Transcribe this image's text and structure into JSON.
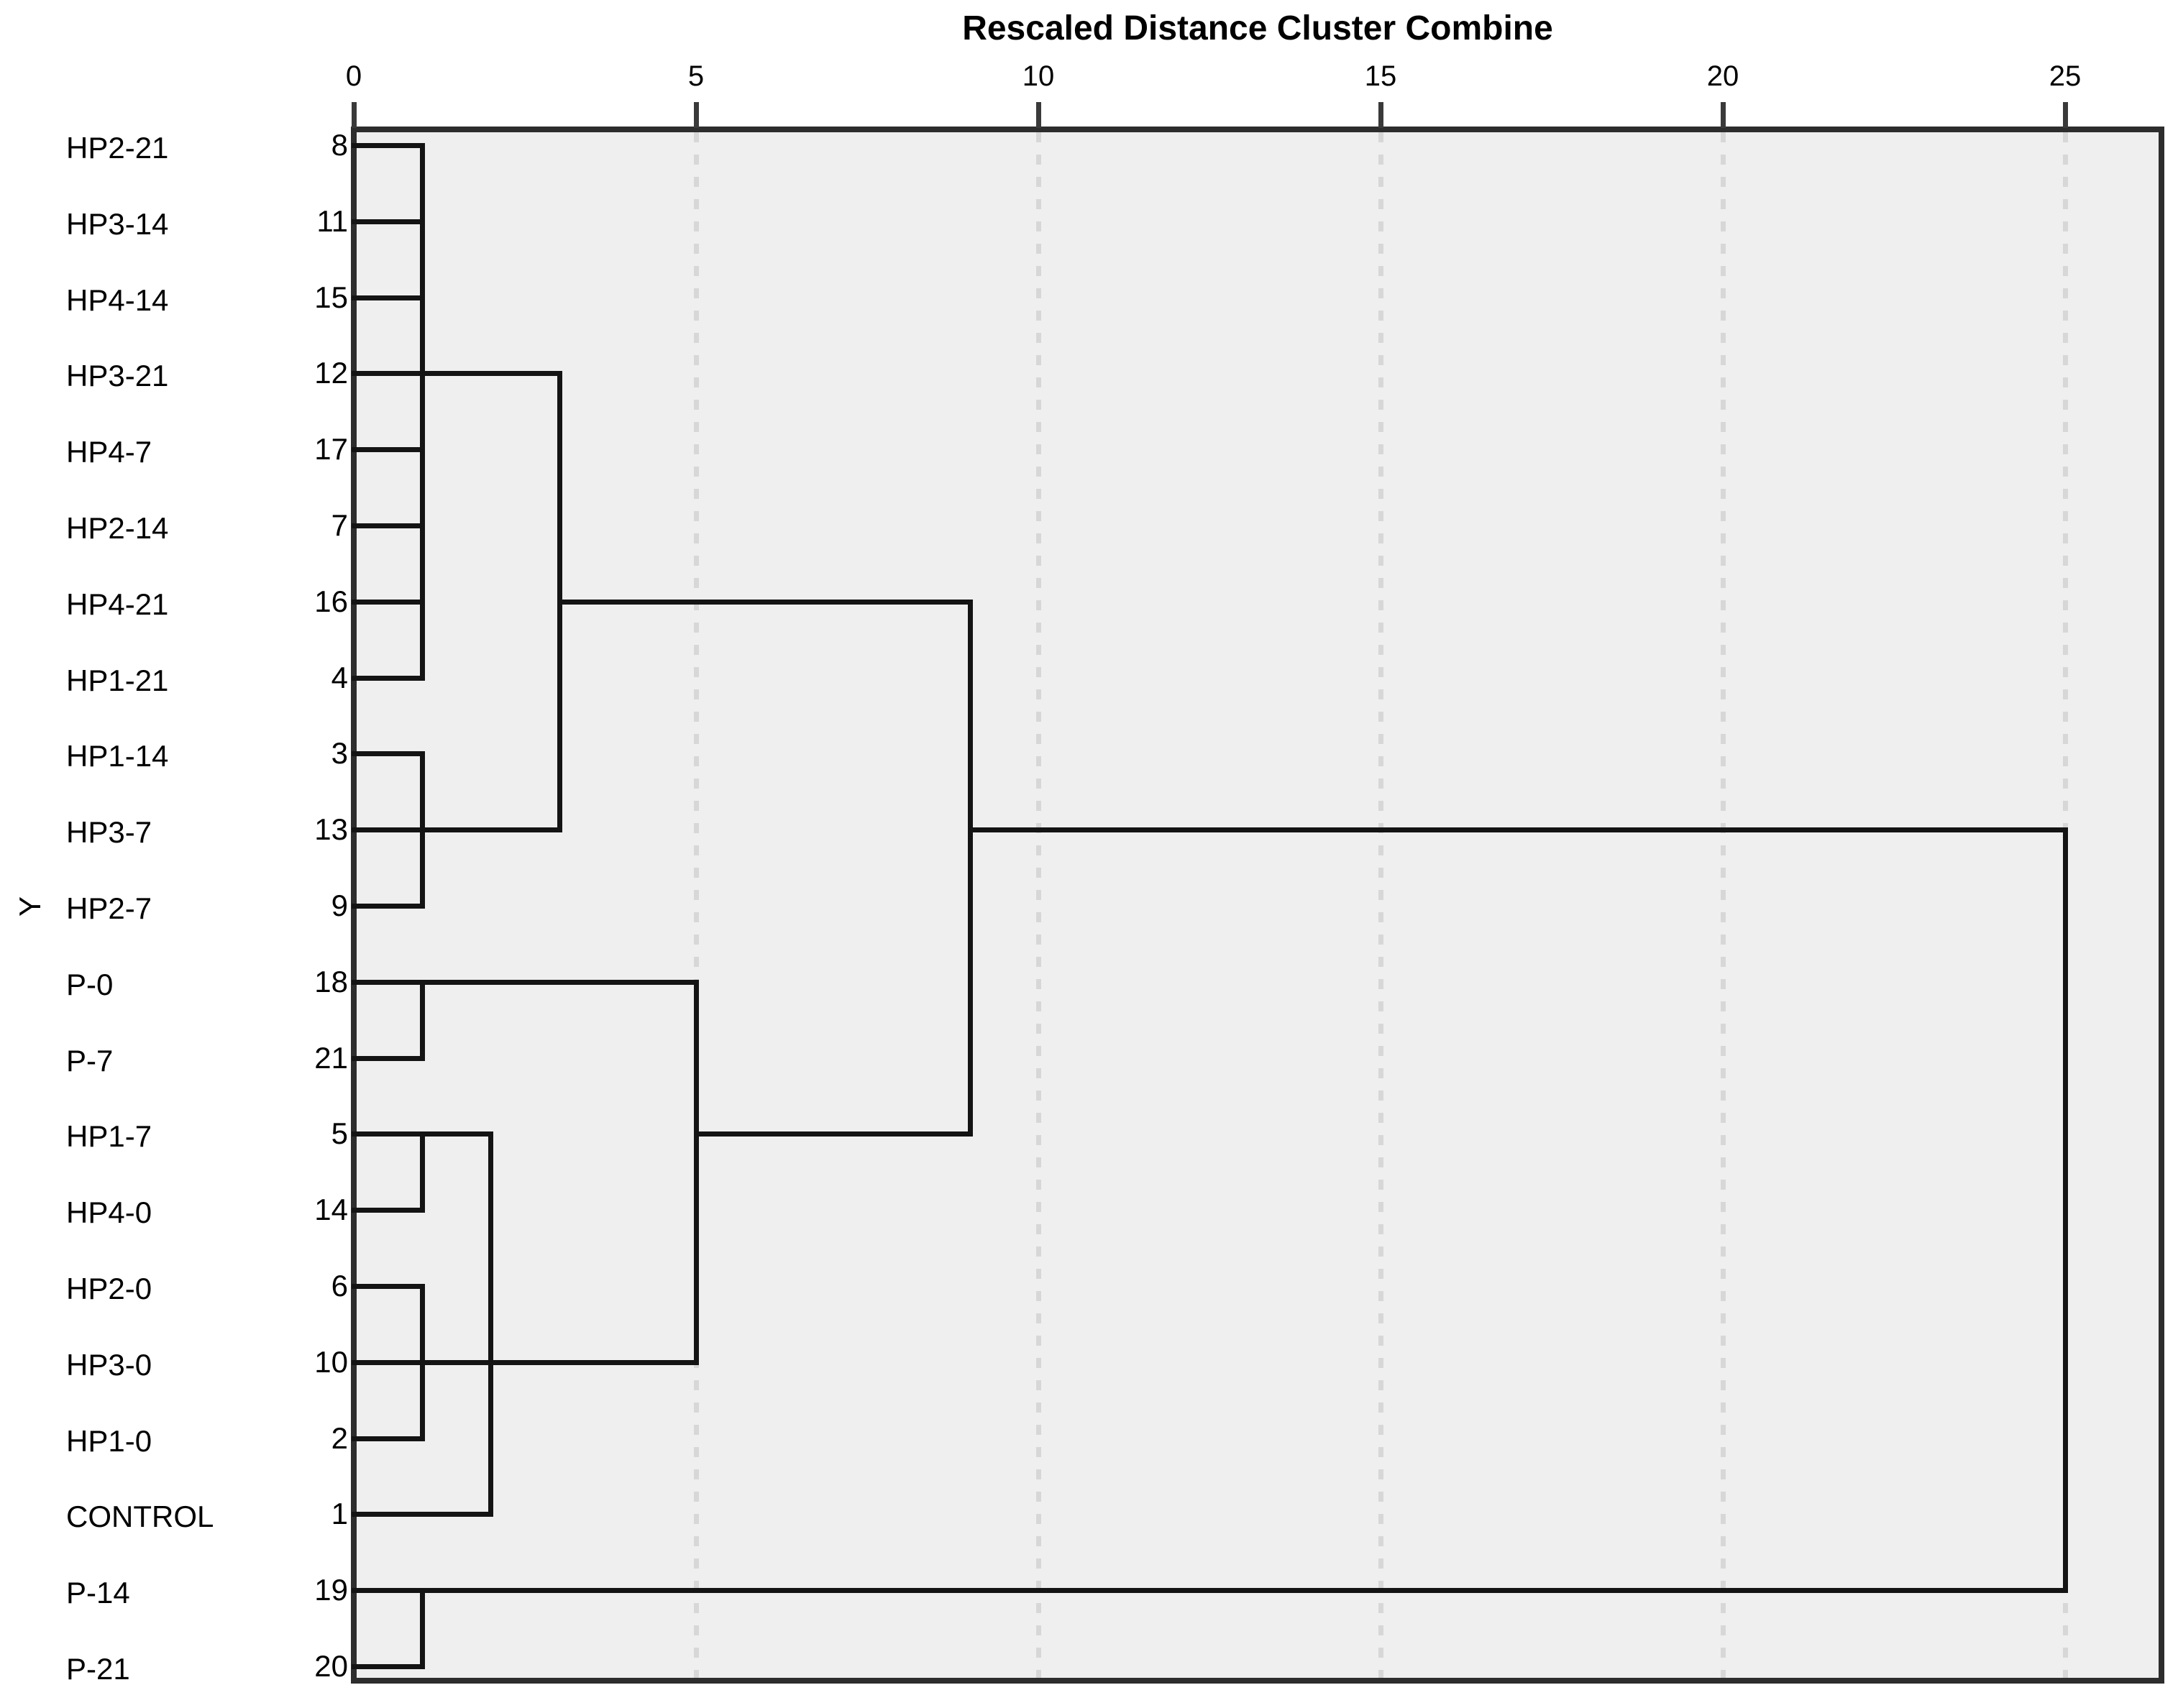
{
  "title": "Rescaled Distance Cluster Combine",
  "y_axis_label": "Y",
  "chart_data": {
    "type": "dendrogram",
    "title": "Rescaled Distance Cluster Combine",
    "xlabel": "Rescaled Distance Cluster Combine",
    "ylabel": "Y",
    "orientation": "horizontal, leaves on left",
    "xlim": [
      0,
      25
    ],
    "x_ticks": [
      0,
      5,
      10,
      15,
      20,
      25
    ],
    "grid": "dashed vertical gridlines at 5, 10, 15, 20, 25",
    "leaves": [
      {
        "label": "HP2-21",
        "case": "8"
      },
      {
        "label": "HP3-14",
        "case": "11"
      },
      {
        "label": "HP4-14",
        "case": "15"
      },
      {
        "label": "HP3-21",
        "case": "12"
      },
      {
        "label": "HP4-7",
        "case": "17"
      },
      {
        "label": "HP2-14",
        "case": "7"
      },
      {
        "label": "HP4-21",
        "case": "16"
      },
      {
        "label": "HP1-21",
        "case": "4"
      },
      {
        "label": "HP1-14",
        "case": "3"
      },
      {
        "label": "HP3-7",
        "case": "13"
      },
      {
        "label": "HP2-7",
        "case": "9"
      },
      {
        "label": "P-0",
        "case": "18"
      },
      {
        "label": "P-7",
        "case": "21"
      },
      {
        "label": "HP1-7",
        "case": "5"
      },
      {
        "label": "HP4-0",
        "case": "14"
      },
      {
        "label": "HP2-0",
        "case": "6"
      },
      {
        "label": "HP3-0",
        "case": "10"
      },
      {
        "label": "HP1-0",
        "case": "2"
      },
      {
        "label": "CONTROL",
        "case": "1"
      },
      {
        "label": "P-14",
        "case": "19"
      },
      {
        "label": "P-21",
        "case": "20"
      }
    ],
    "joins": [
      {
        "members": "HP2-21,HP3-14,HP4-14,HP3-21,HP4-7,HP2-14,HP4-21,HP1-21",
        "distance": 1
      },
      {
        "members": "HP1-14,HP3-7,HP2-7",
        "distance": 1
      },
      {
        "members": "upper HP cluster + {HP1-14,HP3-7,HP2-7}",
        "distance": 3
      },
      {
        "members": "P-0,P-7",
        "distance": 1
      },
      {
        "members": "HP1-7,HP4-0",
        "distance": 1
      },
      {
        "members": "HP2-0,HP3-0,HP1-0",
        "distance": 1
      },
      {
        "members": "{HP1-7,HP4-0} + {HP2-0,HP3-0,HP1-0} + CONTROL",
        "distance": 2
      },
      {
        "members": "{P-0,P-7} + {HP1-7,HP4-0,HP2-0,HP3-0,HP1-0,CONTROL}",
        "distance": 5
      },
      {
        "members": "all-HP/21-day cluster + P-0/P-7/HP-0/CONTROL cluster",
        "distance": 9
      },
      {
        "members": "P-14,P-21",
        "distance": 1
      },
      {
        "members": "root: everything + {P-14,P-21}",
        "distance": 25
      }
    ],
    "segments": {
      "horizontal": [
        {
          "row": 1,
          "x1": 0,
          "x2": 1
        },
        {
          "row": 2,
          "x1": 0,
          "x2": 1
        },
        {
          "row": 3,
          "x1": 0,
          "x2": 1
        },
        {
          "row": 4,
          "x1": 0,
          "x2": 3
        },
        {
          "row": 5,
          "x1": 0,
          "x2": 1
        },
        {
          "row": 6,
          "x1": 0,
          "x2": 1
        },
        {
          "row": 7,
          "x1": 0,
          "x2": 1
        },
        {
          "row": 7,
          "x1": 3,
          "x2": 9
        },
        {
          "row": 8,
          "x1": 0,
          "x2": 1
        },
        {
          "row": 9,
          "x1": 0,
          "x2": 1
        },
        {
          "row": 10,
          "x1": 0,
          "x2": 3
        },
        {
          "row": 10,
          "x1": 9,
          "x2": 25
        },
        {
          "row": 11,
          "x1": 0,
          "x2": 1
        },
        {
          "row": 12,
          "x1": 0,
          "x2": 5
        },
        {
          "row": 13,
          "x1": 0,
          "x2": 1
        },
        {
          "row": 14,
          "x1": 0,
          "x2": 2
        },
        {
          "row": 14,
          "x1": 5,
          "x2": 9
        },
        {
          "row": 15,
          "x1": 0,
          "x2": 1
        },
        {
          "row": 16,
          "x1": 0,
          "x2": 1
        },
        {
          "row": 17,
          "x1": 0,
          "x2": 5
        },
        {
          "row": 18,
          "x1": 0,
          "x2": 1
        },
        {
          "row": 19,
          "x1": 0,
          "x2": 2
        },
        {
          "row": 20,
          "x1": 0,
          "x2": 25
        },
        {
          "row": 21,
          "x1": 0,
          "x2": 1
        }
      ],
      "vertical": [
        {
          "x": 1,
          "row1": 1,
          "row2": 8
        },
        {
          "x": 1,
          "row1": 9,
          "row2": 11
        },
        {
          "x": 3,
          "row1": 4,
          "row2": 10
        },
        {
          "x": 9,
          "row1": 7,
          "row2": 14
        },
        {
          "x": 1,
          "row1": 12,
          "row2": 13
        },
        {
          "x": 5,
          "row1": 12,
          "row2": 17
        },
        {
          "x": 1,
          "row1": 14,
          "row2": 15
        },
        {
          "x": 1,
          "row1": 16,
          "row2": 18
        },
        {
          "x": 2,
          "row1": 14,
          "row2": 19
        },
        {
          "x": 1,
          "row1": 20,
          "row2": 21
        },
        {
          "x": 25,
          "row1": 10,
          "row2": 20
        }
      ]
    }
  },
  "colors": {
    "line": "#141414",
    "border": "#2d2d2d",
    "plot_background": "#efefef",
    "gridline": "#d7d7d7",
    "tick": "#3a3a3a",
    "page_background": "#ffffff"
  }
}
